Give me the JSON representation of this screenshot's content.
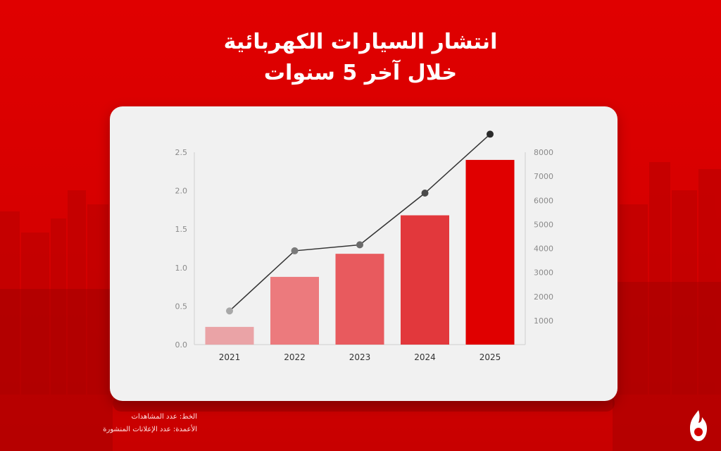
{
  "header": {
    "title_line1": "انتشار السيارات الكهربائية",
    "title_line2": "خلال آخر 5 سنوات"
  },
  "legend": {
    "line_text": "الخط: عدد المشاهدات",
    "bars_text": "الأعمدة: عدد الإعلانات المنشورة"
  },
  "colors": {
    "background": "#e00000",
    "card": "#f1f1f1",
    "line": "#333333",
    "bars": [
      "#eaa3a6",
      "#ec7a7d",
      "#e85a5e",
      "#e2383c",
      "#e00000"
    ]
  },
  "icons": {
    "logo": "flame-logo-icon"
  },
  "chart_data": {
    "type": "bar",
    "categories": [
      "2021",
      "2022",
      "2023",
      "2024",
      "2025"
    ],
    "series": [
      {
        "type": "bar",
        "axis": "left",
        "values": [
          0.23,
          0.88,
          1.18,
          1.68,
          2.4
        ]
      },
      {
        "type": "line",
        "axis": "right",
        "values": [
          1400,
          3900,
          4150,
          6300,
          8750
        ]
      }
    ],
    "y_left": {
      "min": 0,
      "max": 2.5,
      "ticks": [
        "0.0",
        "0.5",
        "1.0",
        "1.5",
        "2.0",
        "2.5"
      ]
    },
    "y_right": {
      "min": 0,
      "max": 8000,
      "ticks": [
        "1000",
        "2000",
        "3000",
        "4000",
        "5000",
        "6000",
        "7000",
        "8000"
      ]
    },
    "grid": false
  }
}
